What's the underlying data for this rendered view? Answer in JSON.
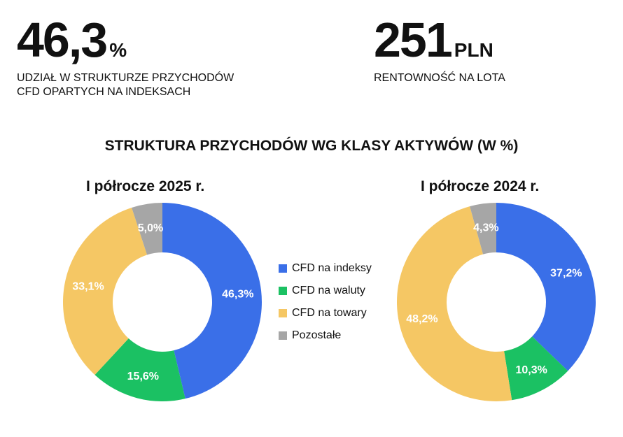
{
  "kpis": [
    {
      "value": "46,3",
      "unit": "%",
      "label_line1": "UDZIAŁ W STRUKTURZE PRZYCHODÓW",
      "label_line2": "CFD OPARTYCH NA INDEKSACH"
    },
    {
      "value": "251",
      "unit": "PLN",
      "label_line1": "RENTOWNOŚĆ NA LOTA",
      "label_line2": ""
    }
  ],
  "chart_data": {
    "type": "pie",
    "title": "STRUKTURA PRZYCHODÓW WG KLASY AKTYWÓW (W %)",
    "categories": [
      "CFD na indeksy",
      "CFD na waluty",
      "CFD na towary",
      "Pozostałe"
    ],
    "colors": [
      "#3a6fe8",
      "#1bc163",
      "#f5c764",
      "#a6a6a6"
    ],
    "legend_position": "center",
    "series": [
      {
        "name": "I półrocze 2025 r.",
        "values": [
          46.3,
          15.6,
          33.1,
          5.0
        ],
        "labels": [
          "46,3%",
          "15,6%",
          "33,1%",
          "5,0%"
        ]
      },
      {
        "name": "I półrocze 2024 r.",
        "values": [
          37.2,
          10.3,
          48.2,
          4.3
        ],
        "labels": [
          "37,2%",
          "10,3%",
          "48,2%",
          "4,3%"
        ]
      }
    ]
  }
}
